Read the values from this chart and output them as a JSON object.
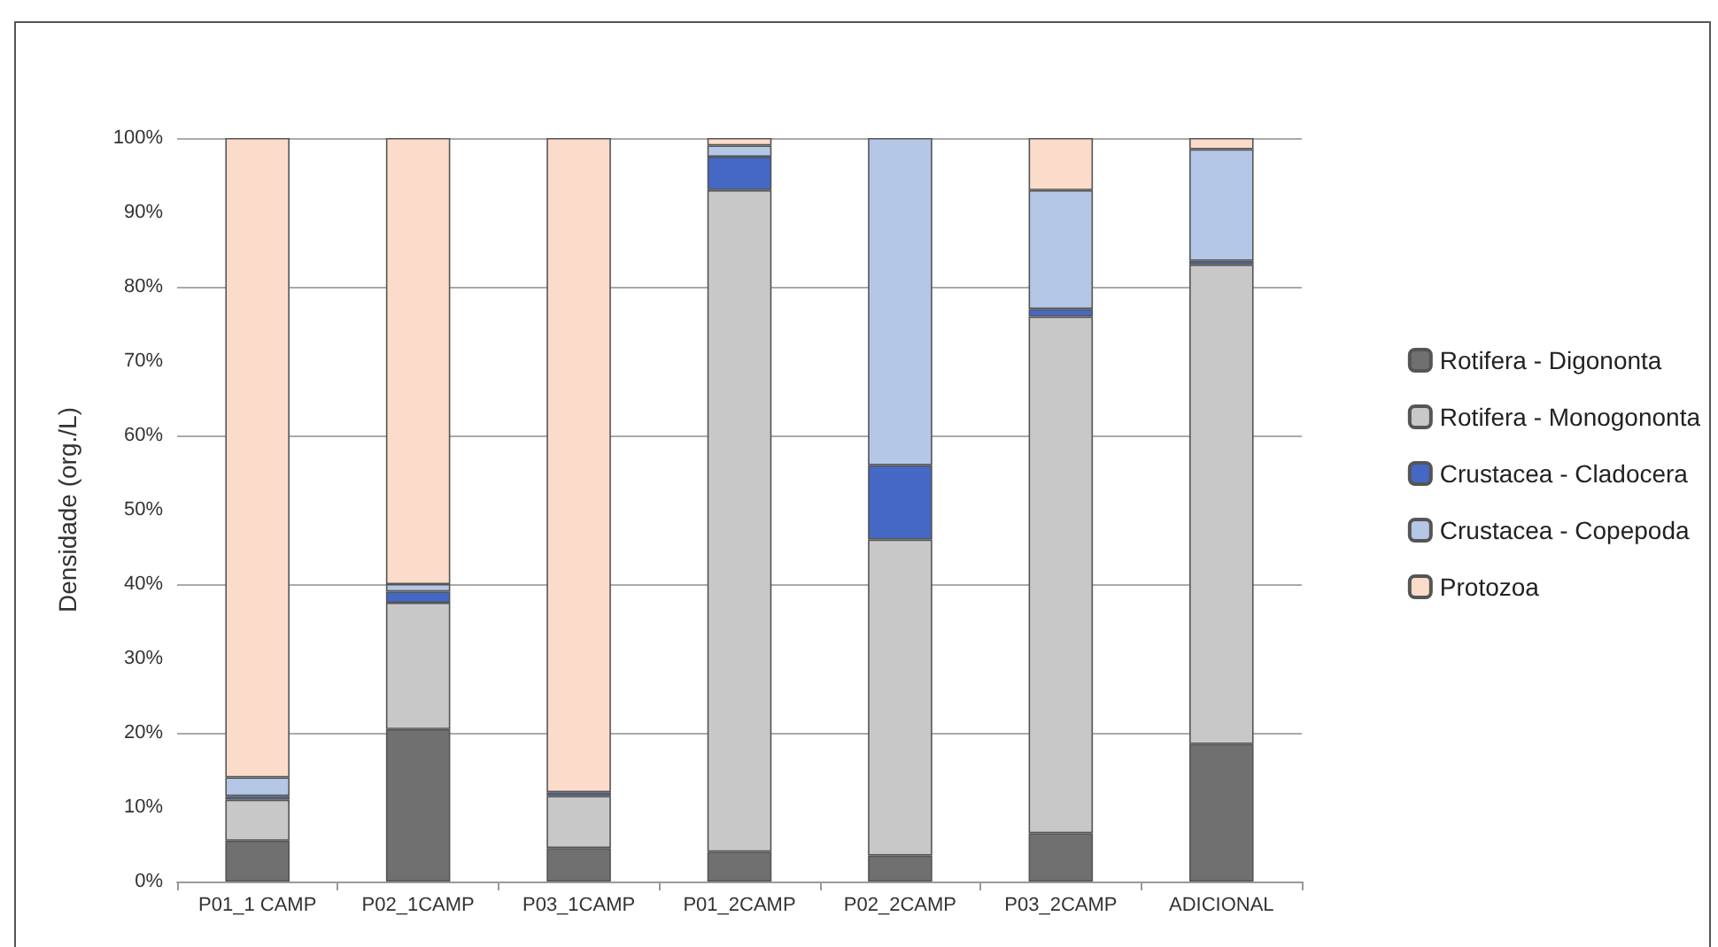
{
  "chart_data": {
    "type": "bar",
    "stacked": true,
    "ylabel": "Densidade (org./L)",
    "categories": [
      "P01_1 CAMP",
      "P02_1CAMP",
      "P03_1CAMP",
      "P01_2CAMP",
      "P02_2CAMP",
      "P03_2CAMP",
      "ADICIONAL"
    ],
    "series": [
      {
        "name": "Rotifera - Digononta",
        "color": "#707070",
        "values": [
          5.5,
          20.5,
          4.5,
          4,
          3.5,
          6.5,
          18.5
        ]
      },
      {
        "name": "Rotifera - Monogononta",
        "color": "#c8c8c8",
        "values": [
          5.5,
          17,
          7,
          89,
          42.5,
          69.5,
          64.5
        ]
      },
      {
        "name": "Crustacea - Cladocera",
        "color": "#4468c4",
        "values": [
          0.5,
          1.5,
          0.5,
          4.5,
          10,
          1,
          0.5
        ]
      },
      {
        "name": "Crustacea - Copepoda",
        "color": "#b4c7e7",
        "values": [
          2.5,
          1,
          0,
          1.5,
          44,
          16,
          15
        ]
      },
      {
        "name": "Protozoa",
        "color": "#fbdccb",
        "values": [
          86,
          60,
          88,
          1,
          0,
          7,
          1.5
        ]
      }
    ],
    "ylim": [
      0,
      100
    ],
    "yticks": [
      {
        "value": 0,
        "label": "0%"
      },
      {
        "value": 10,
        "label": "10%"
      },
      {
        "value": 20,
        "label": "20%"
      },
      {
        "value": 30,
        "label": "30%"
      },
      {
        "value": 40,
        "label": "40%"
      },
      {
        "value": 50,
        "label": "50%"
      },
      {
        "value": 60,
        "label": "60%"
      },
      {
        "value": 70,
        "label": "70%"
      },
      {
        "value": 80,
        "label": "80%"
      },
      {
        "value": 90,
        "label": "90%"
      },
      {
        "value": 100,
        "label": "100%"
      }
    ],
    "grid": "y",
    "legend": "right"
  }
}
